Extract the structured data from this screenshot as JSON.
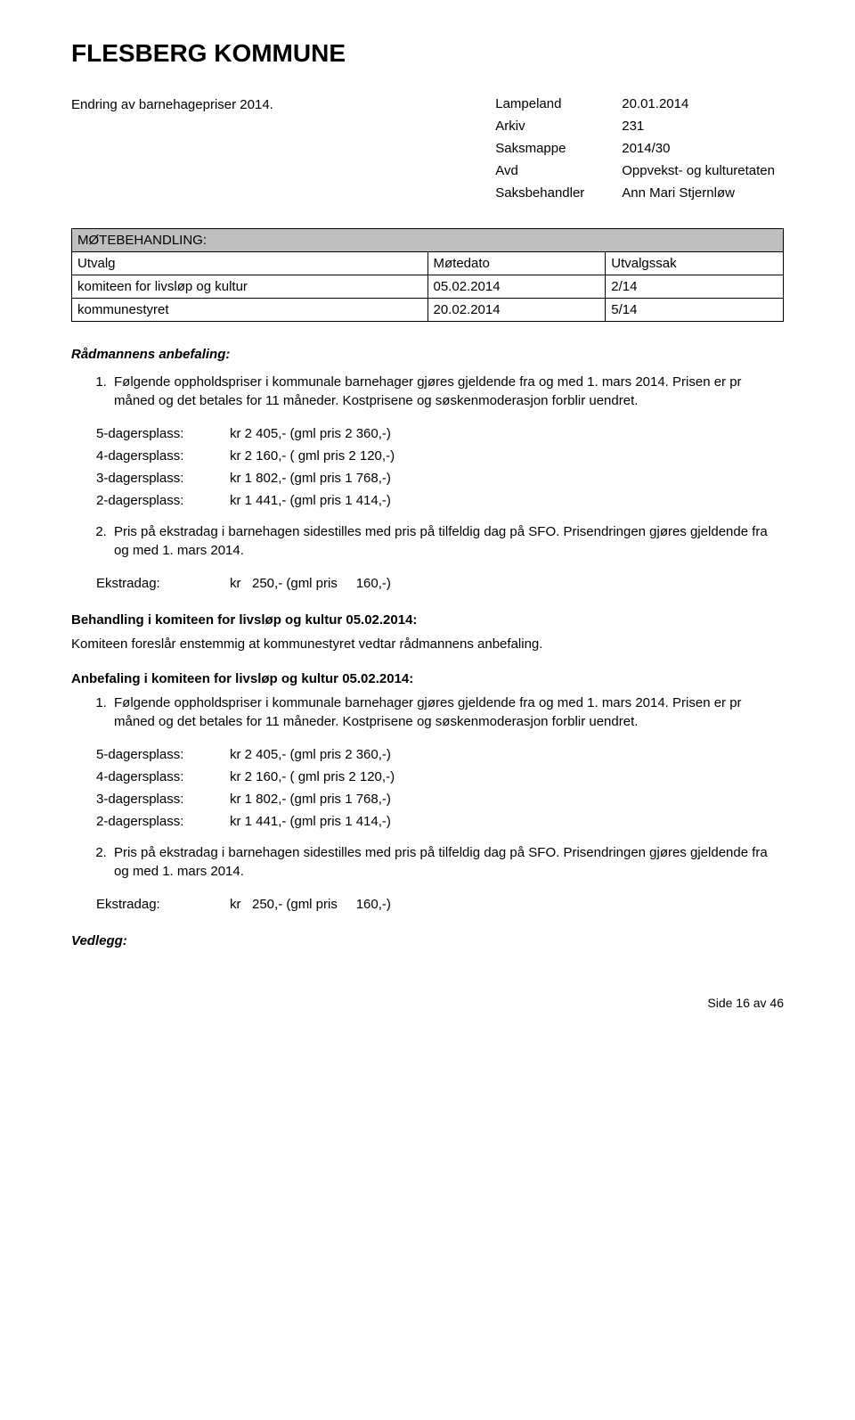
{
  "header": {
    "title": "FLESBERG KOMMUNE",
    "subtitle": "Endring av barnehagepriser 2014."
  },
  "meta": {
    "rows": [
      {
        "label": "Lampeland",
        "value": "20.01.2014"
      },
      {
        "label": "Arkiv",
        "value": "231"
      },
      {
        "label": "Saksmappe",
        "value": "2014/30"
      },
      {
        "label": "Avd",
        "value": "Oppvekst- og kulturetaten"
      },
      {
        "label": "Saksbehandler",
        "value": "Ann Mari Stjernløw"
      }
    ]
  },
  "proc": {
    "heading": "MØTEBEHANDLING:",
    "col1": "Utvalg",
    "col2": "Møtedato",
    "col3": "Utvalgssak",
    "rows": [
      {
        "c1": "komiteen for livsløp og kultur",
        "c2": "05.02.2014",
        "c3": "2/14"
      },
      {
        "c1": "kommunestyret",
        "c2": "20.02.2014",
        "c3": "5/14"
      }
    ]
  },
  "rec": {
    "heading": "Rådmannens anbefaling:",
    "item1": "Følgende oppholdspriser i kommunale barnehager gjøres gjeldende fra og med 1. mars 2014. Prisen er pr måned og det betales for 11 måneder. Kostprisene og søskenmoderasjon forblir uendret.",
    "prices": [
      {
        "label": "5-dagersplass:",
        "value": "kr 2 405,- (gml pris 2 360,-)"
      },
      {
        "label": "4-dagersplass:",
        "value": "kr 2 160,- ( gml pris 2 120,-)"
      },
      {
        "label": "3-dagersplass:",
        "value": "kr 1 802,- (gml pris 1 768,-)"
      },
      {
        "label": "2-dagersplass:",
        "value": "kr 1 441,- (gml pris 1 414,-)"
      }
    ],
    "item2a": "Pris på ekstradag i barnehagen sidestilles med pris på tilfeldig dag på SFO. Prisendringen gjøres gjeldende fra og med 1. mars 2014.",
    "extra": {
      "label": "Ekstradag:",
      "value": "kr   250,- (gml pris     160,-)"
    }
  },
  "beh": {
    "head1": "Behandling i komiteen for livsløp og kultur 05.02.2014:",
    "body1": "Komiteen foreslår enstemmig at kommunestyret vedtar rådmannens anbefaling.",
    "head2": "Anbefaling i komiteen for livsløp og kultur 05.02.2014:"
  },
  "vedlegg": "Vedlegg:",
  "pagenum": "Side 16 av 46"
}
